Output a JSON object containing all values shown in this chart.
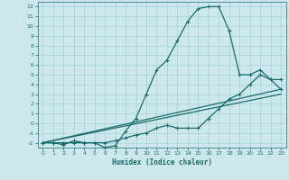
{
  "xlabel": "Humidex (Indice chaleur)",
  "bg_color": "#cce8ec",
  "grid_color": "#a8d4d8",
  "line_color": "#1a6b6b",
  "xlim": [
    -0.5,
    23.5
  ],
  "ylim": [
    -2.5,
    12.5
  ],
  "xticks": [
    0,
    1,
    2,
    3,
    4,
    5,
    6,
    7,
    8,
    9,
    10,
    11,
    12,
    13,
    14,
    15,
    16,
    17,
    18,
    19,
    20,
    21,
    22,
    23
  ],
  "yticks": [
    -2,
    -1,
    0,
    1,
    2,
    3,
    4,
    5,
    6,
    7,
    8,
    9,
    10,
    11,
    12
  ],
  "line1_x": [
    0,
    1,
    2,
    3,
    4,
    5,
    6,
    7,
    8,
    9,
    10,
    11,
    12,
    13,
    14,
    15,
    16,
    17,
    18,
    19,
    20,
    21,
    22,
    23
  ],
  "line1_y": [
    -2,
    -2,
    -2.2,
    -1.8,
    -2,
    -2,
    -2.5,
    -2.3,
    -0.8,
    0.5,
    3,
    5.5,
    6.5,
    8.5,
    10.5,
    11.8,
    12,
    12,
    9.5,
    5,
    5,
    5.5,
    4.5,
    3.5
  ],
  "line2_x": [
    0,
    1,
    2,
    3,
    4,
    5,
    6,
    7,
    8,
    9,
    10,
    11,
    12,
    13,
    14,
    15,
    16,
    17,
    18,
    19,
    20,
    21,
    22,
    23
  ],
  "line2_y": [
    -2,
    -2,
    -2,
    -2,
    -2,
    -2,
    -2,
    -1.8,
    -1.5,
    -1.2,
    -1,
    -0.5,
    -0.2,
    -0.5,
    -0.5,
    -0.5,
    0.5,
    1.5,
    2.5,
    3,
    4,
    5,
    4.5,
    4.5
  ],
  "line3_x": [
    0,
    23
  ],
  "line3_y": [
    -2,
    3.5
  ],
  "line4_x": [
    0,
    23
  ],
  "line4_y": [
    -2,
    3.0
  ]
}
